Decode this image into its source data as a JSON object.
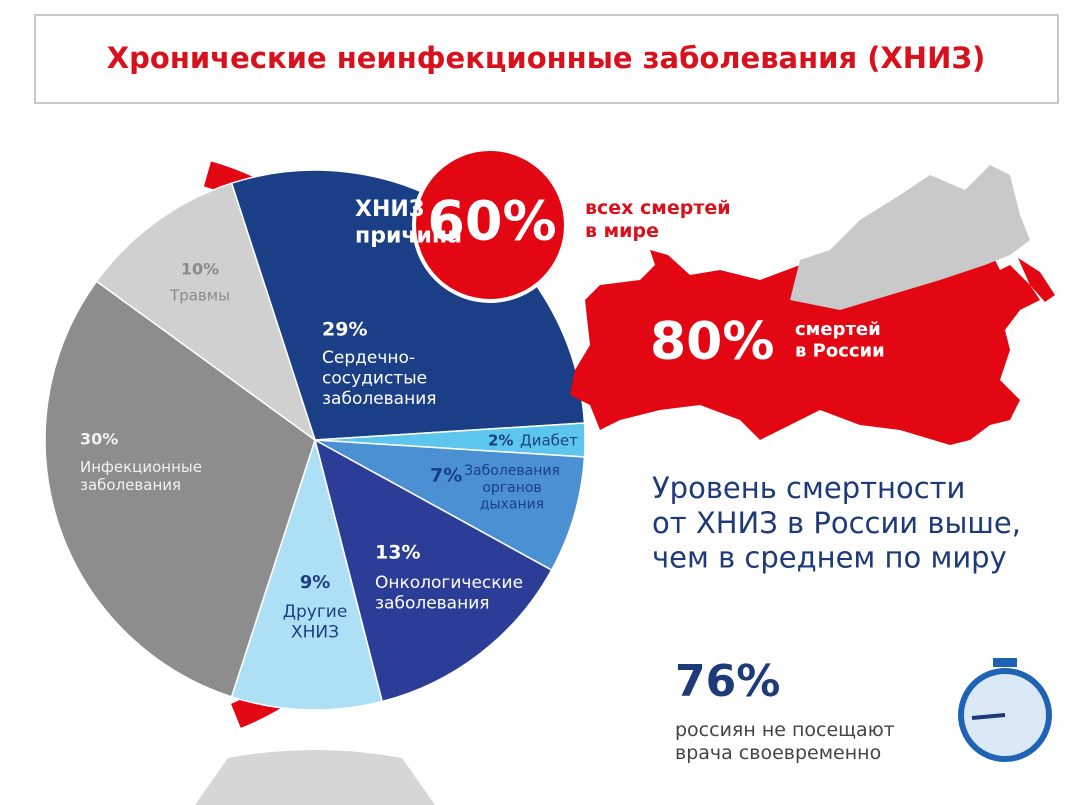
{
  "chart_data": {
    "type": "pie",
    "title": "Хронические неинфекционные заболевания (ХНИЗ)",
    "categories": [
      "Сердечно-\nсосудистые\nзаболевания",
      "Диабет",
      "Заболевания\nорганов\nдыхания",
      "Онкологические\nзаболевания",
      "Другие\nХНИЗ",
      "Инфекционные\nзаболевания",
      "Травмы"
    ],
    "values": [
      29,
      2,
      7,
      13,
      9,
      30,
      10
    ],
    "value_labels": [
      "29%",
      "2%",
      "7%",
      "13%",
      "9%",
      "30%",
      "10%"
    ],
    "colors": [
      "#1b3f86",
      "#5cc6ef",
      "#4b90d3",
      "#2c3d98",
      "#aee0f5",
      "#8d8d8d",
      "#d0d0d0"
    ]
  },
  "infographic": {
    "world": {
      "lead": "ХНИЗ –\nпричина",
      "figure": "60%",
      "text": "всех смертей\nв мире"
    },
    "russia": {
      "figure": "80%",
      "text": "смертей\nв России"
    },
    "statement": "Уровень смертности\nот ХНИЗ в России выше,\nчем в среднем по миру",
    "visits": {
      "figure": "76%",
      "text": "россиян не посещают\nврача своевременно"
    }
  }
}
